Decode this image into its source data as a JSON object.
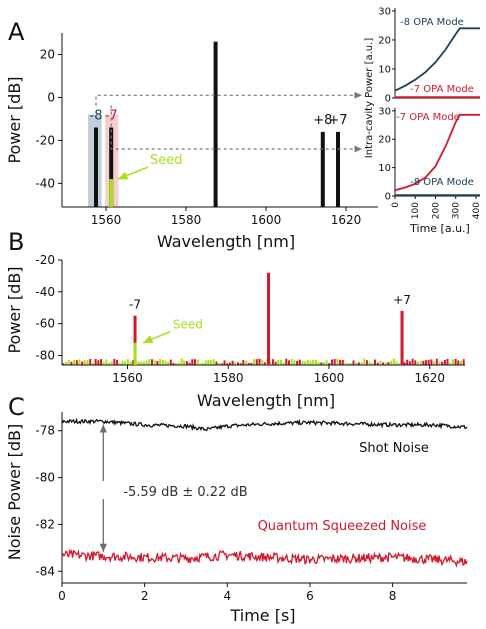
{
  "panel_labels": [
    "A",
    "B",
    "C"
  ],
  "colors": {
    "black": "#111111",
    "red": "#d4182c",
    "green": "#a8e01c",
    "navy": "#1b3f5c",
    "band_blue": "#b9cad6",
    "band_red": "#f6c9c9",
    "arrow_gray": "#777777",
    "bracket_gray": "#6f6f6f"
  },
  "chart_data": [
    {
      "id": "A-main",
      "type": "bar",
      "xlabel": "Wavelength [nm]",
      "ylabel": "Power [dB]",
      "xlim": [
        1549,
        1628
      ],
      "ylim": [
        -51,
        30
      ],
      "xticks": [
        1560,
        1580,
        1600,
        1620
      ],
      "yticks": [
        20,
        0,
        -20,
        -40
      ],
      "lines": [
        {
          "x": 1557.5,
          "top": -14,
          "label": "-8",
          "seed": false
        },
        {
          "x": 1561.3,
          "top": -14,
          "label": "-7",
          "seed": true
        },
        {
          "x": 1587.4,
          "top": 26,
          "label": "",
          "seed": false
        },
        {
          "x": 1614.2,
          "top": -16,
          "label": "+8",
          "seed": false
        },
        {
          "x": 1618.0,
          "top": -16,
          "label": "+7",
          "seed": false
        }
      ],
      "green_part": {
        "from": -51,
        "to": -38
      },
      "bands": [
        {
          "x0": 1555.5,
          "x1": 1558.9,
          "y0": -8,
          "y1": -51,
          "color": "blue"
        },
        {
          "x0": 1559.8,
          "x1": 1563.1,
          "y0": -8,
          "y1": -51,
          "color": "red"
        }
      ],
      "annotations": [
        {
          "text": "Seed",
          "x": 1571,
          "y": -31,
          "arrow_to": {
            "x": 1562,
            "y": -38
          }
        }
      ],
      "arrows": [
        {
          "from": {
            "x": 1557.5,
            "y": -14
          },
          "via_y": 1
        },
        {
          "from": {
            "x": 1561.3,
            "y": -14
          },
          "via_y": -24
        }
      ]
    },
    {
      "id": "A-inset-top",
      "type": "line",
      "xlabel": "",
      "ylabel": "",
      "xlim": [
        0,
        420
      ],
      "ylim": [
        0,
        31
      ],
      "yticks": [
        0,
        10,
        20,
        30
      ],
      "series": [
        {
          "name": "-8 OPA Mode",
          "color": "navy",
          "x": [
            0,
            50,
            100,
            150,
            200,
            250,
            300,
            320,
            420
          ],
          "y": [
            2.5,
            4.2,
            6.3,
            8.9,
            12.3,
            16.7,
            22.0,
            24.0,
            24.0
          ]
        },
        {
          "name": "-7 OPA Mode",
          "color": "red",
          "x": [
            0,
            420
          ],
          "y": [
            0.3,
            0.3
          ]
        }
      ]
    },
    {
      "id": "A-inset-bottom",
      "type": "line",
      "xlabel": "Time [a.u.]",
      "ylabel": "",
      "xlim": [
        0,
        420
      ],
      "ylim": [
        0,
        31
      ],
      "xticks": [
        0,
        100,
        200,
        300,
        400
      ],
      "yticks": [
        0,
        10,
        20,
        30
      ],
      "series": [
        {
          "name": "-7 OPA Mode",
          "color": "red",
          "x": [
            0,
            50,
            100,
            150,
            200,
            250,
            300,
            320,
            420
          ],
          "y": [
            2.0,
            3.0,
            4.3,
            6.5,
            10.5,
            17.5,
            26.0,
            28.6,
            28.6
          ]
        },
        {
          "name": "-8 OPA Mode",
          "color": "navy",
          "x": [
            0,
            420
          ],
          "y": [
            0.3,
            0.3
          ]
        }
      ]
    },
    {
      "id": "B",
      "type": "bar",
      "xlabel": "Wavelength [nm]",
      "ylabel": "Power [dB]",
      "xlim": [
        1547,
        1627
      ],
      "ylim": [
        -86,
        -20
      ],
      "xticks": [
        1560,
        1580,
        1600,
        1620
      ],
      "yticks": [
        -20,
        -40,
        -60,
        -80
      ],
      "peaks": [
        {
          "x": 1561.5,
          "top": -55,
          "label": "-7",
          "seed": true
        },
        {
          "x": 1588.0,
          "top": -28,
          "label": "",
          "seed": false
        },
        {
          "x": 1614.5,
          "top": -52,
          "label": "+7",
          "seed": false
        }
      ],
      "green_part": {
        "from": -86,
        "to": -72
      },
      "noise_floor": [
        -85,
        -82
      ],
      "annotations": [
        {
          "text": "Seed",
          "x": 1569,
          "y": -63,
          "arrow_to": {
            "x": 1562.3,
            "y": -72
          }
        }
      ]
    },
    {
      "id": "C",
      "type": "line",
      "xlabel": "Time [s]",
      "ylabel": "Noise Power [dB]",
      "xlim": [
        0,
        9.8
      ],
      "ylim": [
        -84.5,
        -77.2
      ],
      "xticks": [
        0,
        2,
        4,
        6,
        8
      ],
      "yticks": [
        -78,
        -80,
        -82,
        -84
      ],
      "series": [
        {
          "name": "Shot Noise",
          "color": "black",
          "x": [
            0,
            1,
            2,
            3,
            3.5,
            4,
            5,
            6,
            7,
            8,
            9,
            9.8
          ],
          "y": [
            -77.6,
            -77.6,
            -77.75,
            -77.8,
            -77.95,
            -77.8,
            -77.7,
            -77.65,
            -77.7,
            -77.75,
            -77.75,
            -77.85
          ],
          "noise": 0.08
        },
        {
          "name": "Quantum Squeezed Noise",
          "color": "red",
          "x": [
            0,
            1,
            2,
            3,
            4,
            5,
            6,
            7,
            8,
            9,
            9.8
          ],
          "y": [
            -83.3,
            -83.35,
            -83.4,
            -83.45,
            -83.3,
            -83.4,
            -83.5,
            -83.45,
            -83.4,
            -83.5,
            -83.6
          ],
          "noise": 0.2
        }
      ],
      "bracket": {
        "x": 1.0,
        "y_top": -77.6,
        "y_bottom": -83.3,
        "label": "-5.59 dB ± 0.22 dB"
      }
    }
  ]
}
